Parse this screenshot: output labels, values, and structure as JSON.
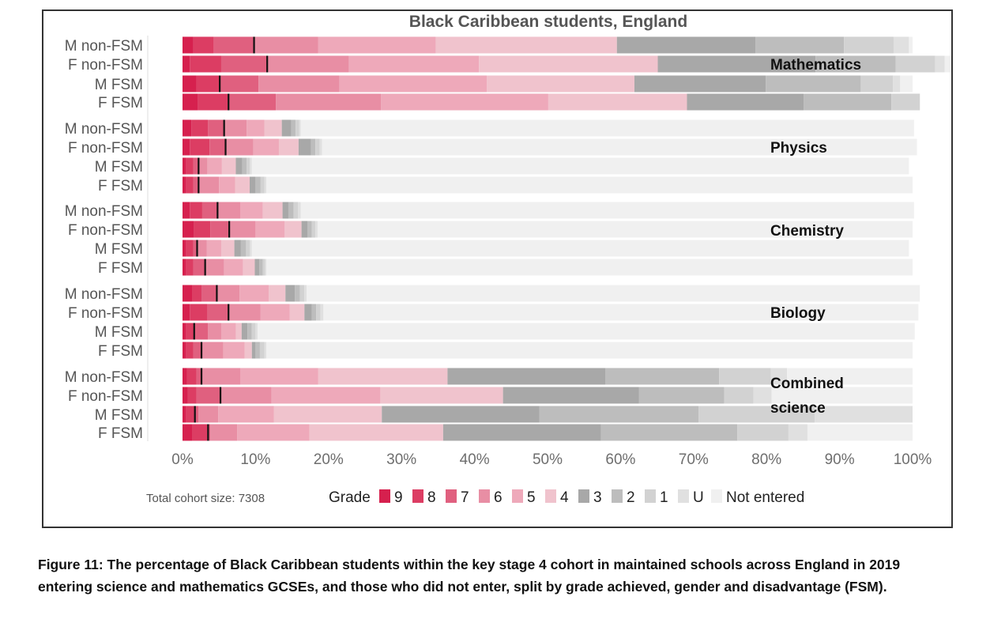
{
  "chart_data": {
    "type": "bar",
    "orientation": "horizontal",
    "stacked": true,
    "title": "Black Caribbean students, England",
    "xlim": [
      0,
      100
    ],
    "x_ticks": [
      "0%",
      "10%",
      "20%",
      "30%",
      "40%",
      "50%",
      "60%",
      "70%",
      "80%",
      "90%",
      "100%"
    ],
    "grades": [
      "9",
      "8",
      "7",
      "6",
      "5",
      "4",
      "3",
      "2",
      "1",
      "U",
      "Not entered"
    ],
    "grade_colors": [
      "#d6204e",
      "#dc3d63",
      "#e0607f",
      "#e88ea4",
      "#eea9ba",
      "#f0c3cd",
      "#a8a8a8",
      "#bdbdbd",
      "#d2d2d2",
      "#e0e0e0",
      "#f0f0f0"
    ],
    "legend_title": "Grade",
    "legend_position": "bottom",
    "note": "Total cohort size: 7308",
    "groups": [
      {
        "subject": "Mathematics",
        "rows": [
          {
            "label": "M non-FSM",
            "segments": [
              1.5,
              2.8,
              5.5,
              8.8,
              16.1,
              24.8,
              19.0,
              12.1,
              6.8,
              2.1,
              0.5
            ],
            "marker": 9.8
          },
          {
            "label": "F non-FSM",
            "segments": [
              1.0,
              4.3,
              6.3,
              11.2,
              17.8,
              24.5,
              21.6,
              11.0,
              5.4,
              1.3,
              5.6
            ],
            "marker": 11.6
          },
          {
            "label": "M FSM",
            "segments": [
              1.9,
              3.2,
              5.3,
              11.1,
              20.2,
              20.2,
              18.0,
              13.0,
              4.4,
              1.0,
              1.7
            ],
            "marker": 5.1
          },
          {
            "label": "F FSM",
            "segments": [
              2.1,
              4.1,
              6.6,
              14.4,
              22.9,
              19.0,
              16.0,
              12.0,
              3.9,
              0.0,
              0.0
            ],
            "marker": 6.3
          }
        ]
      },
      {
        "subject": "Physics",
        "rows": [
          {
            "label": "M non-FSM",
            "segments": [
              1.2,
              2.3,
              2.2,
              3.1,
              2.4,
              2.4,
              1.3,
              0.6,
              0.5,
              0.2,
              84.0
            ],
            "marker": 5.7
          },
          {
            "label": "F non-FSM",
            "segments": [
              1.0,
              2.7,
              2.2,
              3.8,
              3.5,
              2.7,
              1.7,
              0.6,
              0.6,
              0.3,
              81.5
            ],
            "marker": 5.9
          },
          {
            "label": "M FSM",
            "segments": [
              0.5,
              1.0,
              0.7,
              1.2,
              2.0,
              1.9,
              0.9,
              0.6,
              0.4,
              0.3,
              90.0
            ],
            "marker": 2.2
          },
          {
            "label": "F FSM",
            "segments": [
              0.5,
              1.0,
              0.7,
              2.8,
              2.2,
              2.0,
              0.8,
              0.7,
              0.5,
              0.3,
              88.5
            ],
            "marker": 2.2
          }
        ]
      },
      {
        "subject": "Chemistry",
        "rows": [
          {
            "label": "M non-FSM",
            "segments": [
              1.0,
              1.7,
              2.1,
              3.1,
              3.1,
              2.7,
              0.8,
              0.7,
              0.6,
              0.4,
              84.0
            ],
            "marker": 4.8
          },
          {
            "label": "F non-FSM",
            "segments": [
              1.6,
              2.2,
              2.6,
              3.6,
              4.0,
              2.3,
              0.8,
              0.6,
              0.5,
              0.3,
              81.5
            ],
            "marker": 6.4
          },
          {
            "label": "M FSM",
            "segments": [
              0.5,
              1.0,
              0.5,
              1.3,
              2.0,
              1.8,
              0.9,
              0.7,
              0.5,
              0.3,
              90.0
            ],
            "marker": 2.0
          },
          {
            "label": "F FSM",
            "segments": [
              0.5,
              1.0,
              1.6,
              2.6,
              2.6,
              1.6,
              0.6,
              0.5,
              0.3,
              0.2,
              88.5
            ],
            "marker": 3.1
          }
        ]
      },
      {
        "subject": "Biology",
        "rows": [
          {
            "label": "M non-FSM",
            "segments": [
              1.3,
              1.3,
              2.1,
              3.1,
              4.0,
              2.3,
              1.3,
              0.7,
              0.6,
              0.3,
              84.0
            ],
            "marker": 4.7
          },
          {
            "label": "F non-FSM",
            "segments": [
              1.0,
              2.4,
              2.9,
              4.4,
              4.0,
              2.0,
              1.0,
              0.6,
              0.6,
              0.4,
              81.5
            ],
            "marker": 6.3
          },
          {
            "label": "M FSM",
            "segments": [
              0.5,
              1.1,
              1.9,
              1.8,
              2.0,
              0.8,
              0.8,
              0.6,
              0.5,
              0.3,
              90.0
            ],
            "marker": 1.6
          },
          {
            "label": "F FSM",
            "segments": [
              0.5,
              1.0,
              1.1,
              3.0,
              2.9,
              1.0,
              0.5,
              0.6,
              0.6,
              0.3,
              88.5
            ],
            "marker": 2.6
          }
        ]
      },
      {
        "subject": "Combined science",
        "rows": [
          {
            "label": "M non-FSM",
            "segments": [
              0.6,
              1.3,
              0.7,
              5.3,
              10.7,
              17.7,
              21.6,
              15.6,
              7.1,
              2.2,
              17.2
            ],
            "marker": 2.6
          },
          {
            "label": "F non-FSM",
            "segments": [
              0.7,
              1.2,
              3.3,
              7.0,
              14.9,
              16.8,
              18.6,
              11.7,
              4.0,
              2.5,
              19.3
            ],
            "marker": 5.2
          },
          {
            "label": "M FSM",
            "segments": [
              0.5,
              1.2,
              0.5,
              2.7,
              7.6,
              14.8,
              21.6,
              21.8,
              15.9,
              13.4,
              0.0
            ],
            "marker": 1.7
          },
          {
            "label": "F FSM",
            "segments": [
              1.3,
              2.1,
              0.4,
              3.7,
              9.9,
              18.3,
              21.6,
              18.7,
              7.0,
              2.6,
              14.4
            ],
            "marker": 3.5
          }
        ]
      }
    ]
  },
  "caption": "Figure 11: The percentage of Black Caribbean students within the key stage 4 cohort in maintained schools across England in 2019 entering science and mathematics GCSEs, and those who did not enter, split by grade achieved, gender and disadvantage (FSM)."
}
